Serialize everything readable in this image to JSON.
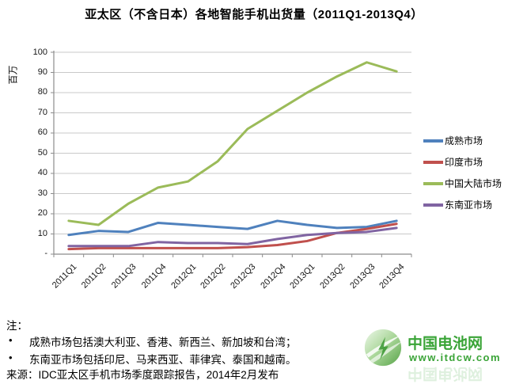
{
  "title": "亚太区（不含日本）各地智能手机出货量（2011Q1-2013Q4）",
  "chart_data": {
    "type": "line",
    "title": "亚太区（不含日本）各地智能手机出货量（2011Q1-2013Q4）",
    "xlabel": "",
    "ylabel": "百万",
    "ylim": [
      0,
      100
    ],
    "grid": "horizontal",
    "legend_position": "right",
    "y_ticks": [
      "-",
      "10",
      "20",
      "30",
      "40",
      "50",
      "60",
      "70",
      "80",
      "90",
      "100"
    ],
    "categories": [
      "2011Q1",
      "2011Q2",
      "2011Q3",
      "2011Q4",
      "2012Q1",
      "2012Q2",
      "2012Q3",
      "2012Q4",
      "2013Q1",
      "2013Q2",
      "2013Q3",
      "2013Q4"
    ],
    "series": [
      {
        "name": "成熟市场",
        "color": "#4F81BD",
        "values": [
          9.5,
          11.5,
          11,
          15.5,
          14.5,
          13.5,
          12.5,
          16.5,
          14.5,
          13,
          13.5,
          16.5
        ]
      },
      {
        "name": "印度市场",
        "color": "#C0504D",
        "values": [
          2.5,
          3,
          3,
          3,
          3,
          3,
          3.5,
          4.5,
          6.5,
          10.5,
          12.5,
          15
        ]
      },
      {
        "name": "中国大陆市场",
        "color": "#9BBB59",
        "values": [
          16.5,
          14.5,
          25,
          33,
          36,
          46,
          62,
          71,
          80,
          88,
          95,
          90.5
        ]
      },
      {
        "name": "东南亚市场",
        "color": "#8064A2",
        "values": [
          4,
          4,
          4,
          6,
          5.5,
          5.5,
          5,
          7.5,
          9.5,
          10.5,
          11,
          13
        ]
      }
    ],
    "colors": {
      "grid": "#C9C9C9",
      "axis": "#8C8C8C"
    }
  },
  "notes": {
    "label": "注：",
    "bullet": "•",
    "items": [
      "成熟市场包括澳大利亚、香港、新西兰、新加坡和台湾；",
      "东南亚市场包括印尼、马来西亚、菲律宾、泰国和越南。"
    ],
    "source": "来源：IDC亚太区手机市场季度跟踪报告，2014年2月发布"
  },
  "watermark": {
    "name": "中国电池网",
    "url": "www.itdcw.com",
    "color": "#3AA437"
  }
}
